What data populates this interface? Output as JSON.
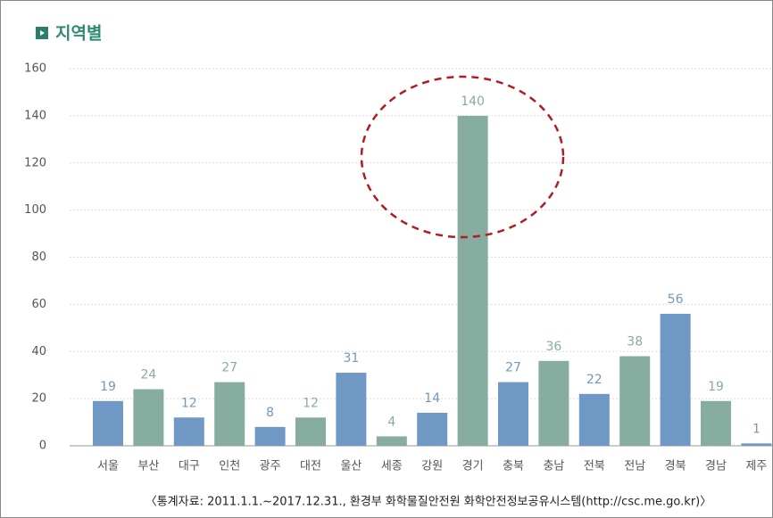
{
  "chart_data": {
    "type": "bar",
    "title": "지역별",
    "categories": [
      "서울",
      "부산",
      "대구",
      "인천",
      "광주",
      "대전",
      "울산",
      "세종",
      "강원",
      "경기",
      "충북",
      "충남",
      "전북",
      "전남",
      "경북",
      "경남",
      "제주"
    ],
    "values": [
      19,
      24,
      12,
      27,
      8,
      12,
      31,
      4,
      14,
      140,
      27,
      36,
      22,
      38,
      56,
      19,
      1
    ],
    "colors": [
      "#6f98c4",
      "#86ad9f",
      "#6f98c4",
      "#86ad9f",
      "#6f98c4",
      "#86ad9f",
      "#6f98c4",
      "#86ad9f",
      "#6f98c4",
      "#86ad9f",
      "#6f98c4",
      "#86ad9f",
      "#6f98c4",
      "#86ad9f",
      "#6f98c4",
      "#86ad9f",
      "#6f98c4"
    ],
    "ylim": [
      0,
      160
    ],
    "yticks": [
      0,
      20,
      40,
      60,
      80,
      100,
      120,
      140,
      160
    ],
    "grid": true,
    "note": "〈통계자료: 2011.1.1.~2017.12.31., 환경부 화학물질안전원 화학안전정보공유시스템(http://csc.me.go.kr)〉"
  }
}
